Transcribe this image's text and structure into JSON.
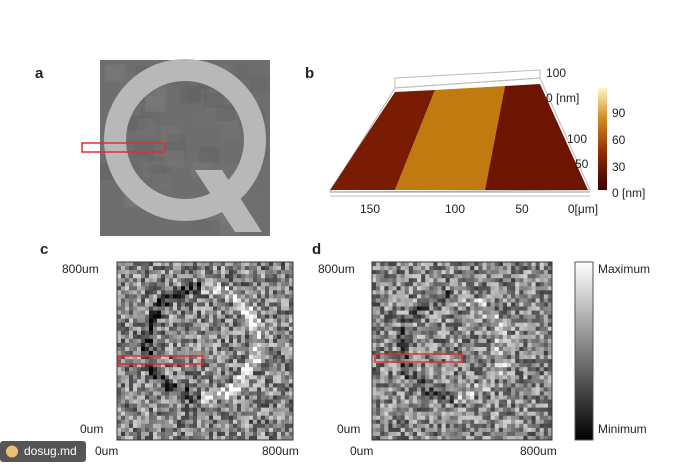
{
  "panels": {
    "a": {
      "label": "a"
    },
    "b": {
      "label": "b",
      "z_ticks": [
        "100",
        "0 [nm]"
      ],
      "colorbar_ticks": [
        "90",
        "60",
        "30",
        "0 [nm]"
      ],
      "y_ticks": [
        "100",
        "50"
      ],
      "x_ticks": [
        "150",
        "100",
        "50",
        "0[μm]"
      ]
    },
    "c": {
      "label": "c",
      "y_ticks": [
        "800um",
        "0um"
      ],
      "x_ticks": [
        "0um",
        "800um"
      ]
    },
    "d": {
      "label": "d",
      "y_ticks": [
        "800um",
        "0um"
      ],
      "x_ticks": [
        "0um",
        "800um"
      ]
    }
  },
  "colorbar": {
    "max_label": "Maximum",
    "min_label": "Minimum"
  },
  "watermark": "dosug.md"
}
